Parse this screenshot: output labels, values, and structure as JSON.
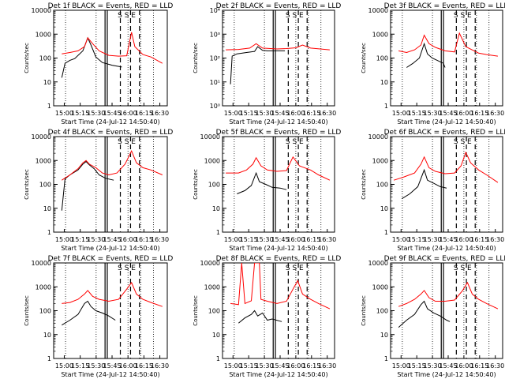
{
  "common": {
    "title_suffix": " BLACK = Events, RED = LLD",
    "xlabel": "Start Time (24-Jul-12 14:50:40)",
    "ylabel": "Counts/sec",
    "xticks": [
      "15:00",
      "15:15",
      "15:30",
      "15:45",
      "16:00",
      "16:15",
      "16:30"
    ],
    "yticks_a": [
      "1",
      "10",
      "100",
      "1000",
      "10000"
    ],
    "yticks_b": [
      "10⁰",
      "10¹",
      "10²",
      "10³",
      "10⁴"
    ],
    "marker_text": "S  S  E",
    "colors": {
      "events": "#000000",
      "lld": "#ff0000"
    }
  },
  "chart_data": [
    {
      "type": "line",
      "title": "Det 1f",
      "ytick_set": "a",
      "ylim": [
        1,
        10000
      ],
      "series": [
        {
          "name": "Events",
          "values": [
            [
              15.3,
              15
            ],
            [
              15.5,
              60
            ],
            [
              15.8,
              80
            ],
            [
              16.1,
              95
            ],
            [
              16.6,
              200
            ],
            [
              16.9,
              700
            ],
            [
              17.1,
              350
            ],
            [
              17.4,
              110
            ],
            [
              17.8,
              65
            ],
            [
              18.4,
              50
            ],
            [
              19,
              42
            ]
          ]
        },
        {
          "name": "LLD",
          "values": [
            [
              15.3,
              150
            ],
            [
              15.8,
              170
            ],
            [
              16.3,
              200
            ],
            [
              16.7,
              300
            ],
            [
              16.9,
              700
            ],
            [
              17.2,
              400
            ],
            [
              17.6,
              200
            ],
            [
              18.2,
              130
            ],
            [
              18.8,
              120
            ],
            [
              19.3,
              125
            ],
            [
              19.6,
              1200
            ],
            [
              19.8,
              300
            ],
            [
              20.3,
              140
            ],
            [
              20.8,
              110
            ],
            [
              21.5,
              60
            ]
          ]
        }
      ]
    },
    {
      "type": "line",
      "title": "Det 2f",
      "ytick_set": "b",
      "ylim": [
        1,
        10000
      ],
      "series": [
        {
          "name": "Events",
          "values": [
            [
              15.3,
              8
            ],
            [
              15.4,
              120
            ],
            [
              15.7,
              150
            ],
            [
              16.3,
              170
            ],
            [
              16.8,
              190
            ],
            [
              17.0,
              300
            ],
            [
              17.3,
              210
            ],
            [
              17.6,
              200
            ],
            [
              18.3,
              200
            ],
            [
              18.7,
              200
            ]
          ]
        },
        {
          "name": "LLD",
          "values": [
            [
              15.0,
              220
            ],
            [
              15.8,
              230
            ],
            [
              16.5,
              260
            ],
            [
              16.9,
              400
            ],
            [
              17.3,
              260
            ],
            [
              18.2,
              240
            ],
            [
              18.8,
              250
            ],
            [
              19.4,
              270
            ],
            [
              19.8,
              350
            ],
            [
              20.3,
              260
            ],
            [
              21.5,
              220
            ]
          ]
        }
      ]
    },
    {
      "type": "line",
      "title": "Det 3f",
      "ytick_set": "a",
      "ylim": [
        1,
        10000
      ],
      "series": [
        {
          "name": "Events",
          "values": [
            [
              15.8,
              40
            ],
            [
              16.2,
              60
            ],
            [
              16.6,
              100
            ],
            [
              16.9,
              400
            ],
            [
              17.1,
              150
            ],
            [
              17.4,
              100
            ],
            [
              17.8,
              75
            ],
            [
              18.1,
              60
            ],
            [
              18.2,
              40
            ]
          ]
        },
        {
          "name": "LLD",
          "values": [
            [
              15.3,
              200
            ],
            [
              15.8,
              170
            ],
            [
              16.3,
              220
            ],
            [
              16.7,
              350
            ],
            [
              16.9,
              900
            ],
            [
              17.2,
              400
            ],
            [
              17.6,
              280
            ],
            [
              18.2,
              200
            ],
            [
              18.8,
              180
            ],
            [
              19.1,
              1100
            ],
            [
              19.5,
              300
            ],
            [
              20.3,
              160
            ],
            [
              20.8,
              140
            ],
            [
              21.5,
              120
            ]
          ]
        }
      ]
    },
    {
      "type": "line",
      "title": "Det 4f",
      "ytick_set": "a",
      "ylim": [
        1,
        10000
      ],
      "series": [
        {
          "name": "Events",
          "values": [
            [
              15.3,
              8
            ],
            [
              15.5,
              170
            ],
            [
              15.8,
              250
            ],
            [
              16.3,
              400
            ],
            [
              16.6,
              700
            ],
            [
              16.8,
              900
            ],
            [
              17.0,
              650
            ],
            [
              17.3,
              450
            ],
            [
              17.6,
              250
            ],
            [
              18.0,
              180
            ],
            [
              18.5,
              150
            ]
          ]
        },
        {
          "name": "LLD",
          "values": [
            [
              15.3,
              150
            ],
            [
              15.8,
              250
            ],
            [
              16.3,
              450
            ],
            [
              16.6,
              800
            ],
            [
              16.8,
              1000
            ],
            [
              17.0,
              700
            ],
            [
              17.4,
              500
            ],
            [
              17.8,
              300
            ],
            [
              18.2,
              250
            ],
            [
              18.7,
              300
            ],
            [
              19.2,
              700
            ],
            [
              19.6,
              2500
            ],
            [
              19.9,
              800
            ],
            [
              20.3,
              500
            ],
            [
              20.8,
              400
            ],
            [
              21.5,
              250
            ]
          ]
        }
      ]
    },
    {
      "type": "line",
      "title": "Det 5f",
      "ytick_set": "a",
      "ylim": [
        1,
        10000
      ],
      "series": [
        {
          "name": "Events",
          "values": [
            [
              15.7,
              40
            ],
            [
              16.2,
              55
            ],
            [
              16.6,
              90
            ],
            [
              16.9,
              300
            ],
            [
              17.1,
              130
            ],
            [
              17.5,
              100
            ],
            [
              17.9,
              75
            ],
            [
              18.4,
              70
            ],
            [
              18.8,
              60
            ]
          ]
        },
        {
          "name": "LLD",
          "values": [
            [
              15.0,
              300
            ],
            [
              15.8,
              300
            ],
            [
              16.3,
              400
            ],
            [
              16.7,
              700
            ],
            [
              16.9,
              1300
            ],
            [
              17.2,
              600
            ],
            [
              17.6,
              400
            ],
            [
              18.2,
              350
            ],
            [
              18.8,
              380
            ],
            [
              19.2,
              1400
            ],
            [
              19.6,
              600
            ],
            [
              20.3,
              400
            ],
            [
              20.8,
              250
            ],
            [
              21.5,
              150
            ]
          ]
        }
      ]
    },
    {
      "type": "line",
      "title": "Det 6f",
      "ytick_set": "a",
      "ylim": [
        1,
        10000
      ],
      "series": [
        {
          "name": "Events",
          "values": [
            [
              15.5,
              25
            ],
            [
              16.0,
              40
            ],
            [
              16.5,
              80
            ],
            [
              16.9,
              400
            ],
            [
              17.1,
              150
            ],
            [
              17.5,
              110
            ],
            [
              17.9,
              80
            ],
            [
              18.3,
              70
            ]
          ]
        },
        {
          "name": "LLD",
          "values": [
            [
              15.0,
              150
            ],
            [
              15.6,
              200
            ],
            [
              16.3,
              300
            ],
            [
              16.7,
              700
            ],
            [
              16.9,
              1400
            ],
            [
              17.2,
              500
            ],
            [
              17.6,
              350
            ],
            [
              18.2,
              280
            ],
            [
              18.8,
              300
            ],
            [
              19.2,
              600
            ],
            [
              19.5,
              2200
            ],
            [
              19.8,
              800
            ],
            [
              20.3,
              400
            ],
            [
              20.8,
              250
            ],
            [
              21.5,
              120
            ]
          ]
        }
      ]
    },
    {
      "type": "line",
      "title": "Det 7f",
      "ytick_set": "a",
      "ylim": [
        1,
        10000
      ],
      "series": [
        {
          "name": "Events",
          "values": [
            [
              15.3,
              25
            ],
            [
              15.8,
              40
            ],
            [
              16.3,
              70
            ],
            [
              16.7,
              200
            ],
            [
              16.9,
              250
            ],
            [
              17.1,
              150
            ],
            [
              17.4,
              100
            ],
            [
              17.8,
              80
            ],
            [
              18.2,
              60
            ],
            [
              18.6,
              40
            ]
          ]
        },
        {
          "name": "LLD",
          "values": [
            [
              15.3,
              200
            ],
            [
              15.8,
              220
            ],
            [
              16.3,
              300
            ],
            [
              16.7,
              500
            ],
            [
              16.9,
              700
            ],
            [
              17.2,
              400
            ],
            [
              17.6,
              300
            ],
            [
              18.2,
              250
            ],
            [
              18.8,
              300
            ],
            [
              19.3,
              800
            ],
            [
              19.6,
              1500
            ],
            [
              19.9,
              500
            ],
            [
              20.3,
              300
            ],
            [
              20.8,
              220
            ],
            [
              21.5,
              150
            ]
          ]
        }
      ]
    },
    {
      "type": "line",
      "title": "Det 8f",
      "ytick_set": "a",
      "ylim": [
        1,
        10000
      ],
      "series": [
        {
          "name": "Events",
          "values": [
            [
              15.8,
              30
            ],
            [
              16.2,
              50
            ],
            [
              16.6,
              70
            ],
            [
              16.8,
              100
            ],
            [
              17.0,
              60
            ],
            [
              17.3,
              80
            ],
            [
              17.6,
              40
            ],
            [
              17.9,
              45
            ],
            [
              18.5,
              35
            ]
          ]
        },
        {
          "name": "LLD",
          "values": [
            [
              15.3,
              200
            ],
            [
              15.8,
              180
            ],
            [
              16.0,
              10000
            ],
            [
              16.2,
              200
            ],
            [
              16.6,
              260
            ],
            [
              16.8,
              10000
            ],
            [
              17.1,
              10000
            ],
            [
              17.2,
              300
            ],
            [
              17.6,
              250
            ],
            [
              18.2,
              200
            ],
            [
              18.8,
              250
            ],
            [
              19.2,
              800
            ],
            [
              19.5,
              1800
            ],
            [
              19.8,
              500
            ],
            [
              20.3,
              300
            ],
            [
              20.8,
              200
            ],
            [
              21.5,
              120
            ]
          ]
        }
      ]
    },
    {
      "type": "line",
      "title": "Det 9f",
      "ytick_set": "a",
      "ylim": [
        1,
        10000
      ],
      "series": [
        {
          "name": "Events",
          "values": [
            [
              15.3,
              20
            ],
            [
              15.8,
              40
            ],
            [
              16.3,
              70
            ],
            [
              16.7,
              180
            ],
            [
              16.9,
              250
            ],
            [
              17.1,
              120
            ],
            [
              17.5,
              80
            ],
            [
              17.9,
              60
            ],
            [
              18.3,
              40
            ],
            [
              18.5,
              35
            ]
          ]
        },
        {
          "name": "LLD",
          "values": [
            [
              15.3,
              150
            ],
            [
              15.8,
              200
            ],
            [
              16.3,
              300
            ],
            [
              16.7,
              500
            ],
            [
              16.9,
              700
            ],
            [
              17.2,
              350
            ],
            [
              17.6,
              250
            ],
            [
              18.2,
              250
            ],
            [
              18.8,
              280
            ],
            [
              19.3,
              700
            ],
            [
              19.6,
              1500
            ],
            [
              19.9,
              500
            ],
            [
              20.3,
              300
            ],
            [
              20.8,
              200
            ],
            [
              21.5,
              120
            ]
          ]
        }
      ]
    }
  ]
}
